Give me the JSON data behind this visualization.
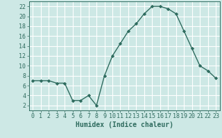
{
  "x": [
    0,
    1,
    2,
    3,
    4,
    5,
    6,
    7,
    8,
    9,
    10,
    11,
    12,
    13,
    14,
    15,
    16,
    17,
    18,
    19,
    20,
    21,
    22,
    23
  ],
  "y": [
    7.0,
    7.0,
    7.0,
    6.5,
    6.5,
    3.0,
    3.0,
    4.0,
    2.0,
    8.0,
    12.0,
    14.5,
    17.0,
    18.5,
    20.5,
    22.0,
    22.0,
    21.5,
    20.5,
    17.0,
    13.5,
    10.0,
    9.0,
    7.5
  ],
  "line_color": "#2e6b5e",
  "marker": "D",
  "marker_size": 2.2,
  "bg_color": "#cde8e5",
  "grid_color": "#ffffff",
  "tick_color": "#2e6b5e",
  "xlabel": "Humidex (Indice chaleur)",
  "xlim": [
    -0.5,
    23.5
  ],
  "ylim": [
    1,
    23
  ],
  "yticks": [
    2,
    4,
    6,
    8,
    10,
    12,
    14,
    16,
    18,
    20,
    22
  ],
  "xticks": [
    0,
    1,
    2,
    3,
    4,
    5,
    6,
    7,
    8,
    9,
    10,
    11,
    12,
    13,
    14,
    15,
    16,
    17,
    18,
    19,
    20,
    21,
    22,
    23
  ],
  "xlabel_fontsize": 7,
  "tick_fontsize": 6,
  "linewidth": 1.0
}
